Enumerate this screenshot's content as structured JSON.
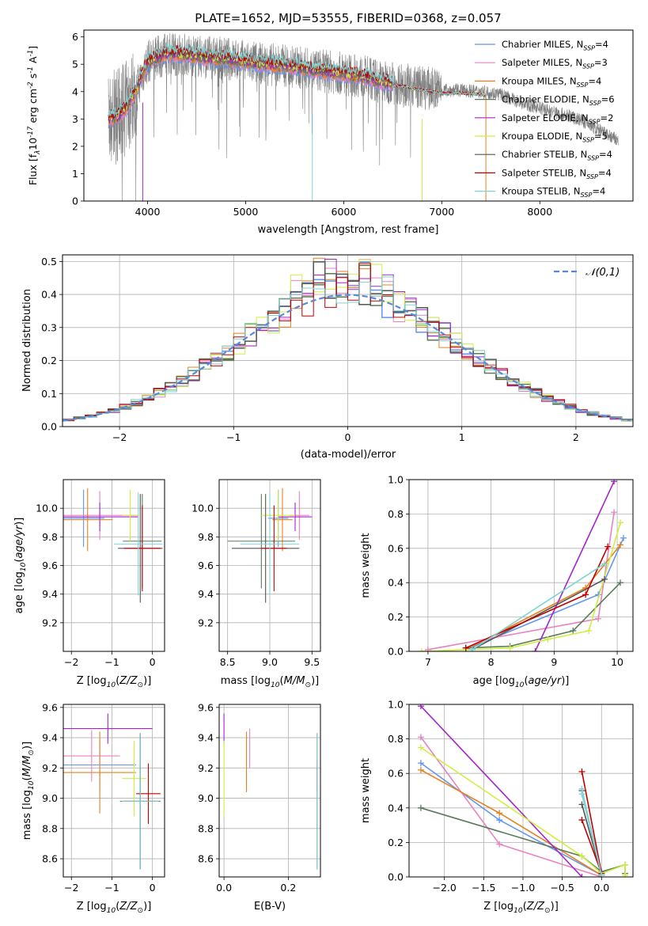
{
  "colors": {
    "c_miles": "#6495ed",
    "s_miles": "#e882c0",
    "k_miles": "#e8801e",
    "c_elodie": "#5a7a5a",
    "s_elodie": "#a526c8",
    "k_elodie": "#cfee44",
    "c_stelib": "#555555",
    "s_stelib": "#c00000",
    "k_stelib": "#7fd4d4",
    "observed": "#808080",
    "gauss": "#5a88d8",
    "grid": "#b0b0b0"
  },
  "legend": {
    "models": [
      "Chabrier MILES, N$_{SSP}$=4",
      "Salpeter MILES, N$_{SSP}$=3",
      "Kroupa MILES, N$_{SSP}$=4",
      "Chabrier ELODIE, N$_{SSP}$=6",
      "Salpeter ELODIE, N$_{SSP}$=2",
      "Kroupa ELODIE, N$_{SSP}$=5",
      "Chabrier STELIB, N$_{SSP}$=4",
      "Salpeter STELIB, N$_{SSP}$=4",
      "Kroupa STELIB, N$_{SSP}$=4"
    ],
    "model_keys": [
      "c_miles",
      "s_miles",
      "k_miles",
      "c_elodie",
      "s_elodie",
      "k_elodie",
      "c_stelib",
      "s_stelib",
      "k_stelib"
    ]
  },
  "chart_data": [
    {
      "panel": "spectrum",
      "type": "line",
      "title": "PLATE=1652, MJD=53555, FIBERID=0368, z=0.057",
      "xlabel": "wavelength [Angstrom, rest frame]",
      "ylabel": "Flux [f$_\\lambda$10$^{-17}$ erg cm$^{-2}$ s$^{-1}$ A$^{-1}$]",
      "xlim": [
        3350,
        8950
      ],
      "ylim": [
        0,
        6.25
      ],
      "xticks": [
        4000,
        5000,
        6000,
        7000,
        8000
      ],
      "yticks": [
        0,
        1,
        2,
        3,
        4,
        5,
        6
      ],
      "grid": false,
      "legend_position": "top-right",
      "continuum": {
        "x": [
          3600,
          3700,
          3800,
          3900,
          4000,
          4200,
          4400,
          4600,
          4800,
          5000,
          5200,
          5400,
          5600,
          5800,
          6000,
          6200,
          6400,
          6600,
          6800,
          7000,
          7200,
          7400,
          7600,
          7800,
          8000,
          8200,
          8400,
          8600,
          8800
        ],
        "y": [
          3.0,
          3.1,
          3.5,
          4.2,
          5.1,
          5.4,
          5.35,
          5.25,
          5.2,
          5.1,
          5.0,
          4.95,
          4.85,
          4.75,
          4.65,
          4.55,
          4.35,
          4.3,
          4.15,
          4.05,
          4.05,
          4.0,
          3.9,
          3.6,
          3.4,
          3.2,
          3.0,
          2.6,
          2.2
        ]
      }
    },
    {
      "panel": "residuals",
      "type": "line",
      "xlabel": "(data-model)/error",
      "ylabel": "Normed distribution",
      "xlim": [
        -2.5,
        2.5
      ],
      "ylim": [
        0,
        0.52
      ],
      "xticks": [
        -2,
        -1,
        0,
        1,
        2
      ],
      "yticks": [
        0.0,
        0.1,
        0.2,
        0.3,
        0.4,
        0.5
      ],
      "grid": true,
      "legend_position": "top-right",
      "series": [
        {
          "name": "$\\mathcal{N}(0,1)$",
          "type": "normal-pdf"
        }
      ],
      "histograms": "one normed histogram per model (bin width 0.1)"
    },
    {
      "panel": "age_vs_Z",
      "type": "scatter",
      "xlabel": "Z [log$_{10}$($Z/Z_\\odot$)]",
      "ylabel": "age  [log$_{10}$($age/yr$)]",
      "xlim": [
        -2.2,
        0.3
      ],
      "ylim": [
        9.0,
        10.2
      ],
      "xticks": [
        -2,
        -1,
        0
      ],
      "yticks": [
        9.2,
        9.4,
        9.6,
        9.8,
        10.0
      ],
      "grid": true,
      "points": [
        {
          "m": "c_miles",
          "x": -1.7,
          "y": 9.93,
          "xe": 0.52,
          "ye": 0.2
        },
        {
          "m": "s_miles",
          "x": -1.3,
          "y": 9.95,
          "xe": 0.95,
          "ye": 0.17
        },
        {
          "m": "k_miles",
          "x": -1.6,
          "y": 9.92,
          "xe": 0.62,
          "ye": 0.22
        },
        {
          "m": "c_elodie",
          "x": -0.25,
          "y": 9.77,
          "xe": 0.48,
          "ye": 0.33
        },
        {
          "m": "s_elodie",
          "x": -1.3,
          "y": 9.94,
          "xe": 0.95,
          "ye": 0.1
        },
        {
          "m": "k_elodie",
          "x": -0.55,
          "y": 9.95,
          "xe": 0.2,
          "ye": 0.18
        },
        {
          "m": "c_stelib",
          "x": -0.3,
          "y": 9.72,
          "xe": 0.55,
          "ye": 0.38
        },
        {
          "m": "s_stelib",
          "x": -0.25,
          "y": 9.72,
          "xe": 0.45,
          "ye": 0.3
        },
        {
          "m": "k_stelib",
          "x": -0.35,
          "y": 9.75,
          "xe": 0.6,
          "ye": 0.36
        }
      ]
    },
    {
      "panel": "age_vs_mass",
      "type": "scatter",
      "xlabel": "mass [log$_{10}$($M/M_\\odot$)]",
      "xlim": [
        8.4,
        9.6
      ],
      "ylim": [
        9.0,
        10.2
      ],
      "xticks": [
        8.5,
        9.0,
        9.5
      ],
      "yticks": [
        9.2,
        9.4,
        9.6,
        9.8,
        10.0
      ],
      "grid": true,
      "points": [
        {
          "m": "c_miles",
          "x": 9.1,
          "y": 9.93,
          "xe": 0.12,
          "ye": 0.2
        },
        {
          "m": "s_miles",
          "x": 9.35,
          "y": 9.95,
          "xe": 0.12,
          "ye": 0.17
        },
        {
          "m": "k_miles",
          "x": 9.15,
          "y": 9.92,
          "xe": 0.12,
          "ye": 0.22
        },
        {
          "m": "c_elodie",
          "x": 8.9,
          "y": 9.77,
          "xe": 0.4,
          "ye": 0.33
        },
        {
          "m": "s_elodie",
          "x": 9.3,
          "y": 9.94,
          "xe": 0.2,
          "ye": 0.1
        },
        {
          "m": "k_elodie",
          "x": 9.1,
          "y": 9.95,
          "xe": 0.2,
          "ye": 0.18
        },
        {
          "m": "c_stelib",
          "x": 8.95,
          "y": 9.72,
          "xe": 0.4,
          "ye": 0.38
        },
        {
          "m": "s_stelib",
          "x": 9.05,
          "y": 9.72,
          "xe": 0.15,
          "ye": 0.3
        },
        {
          "m": "k_stelib",
          "x": 9.0,
          "y": 9.75,
          "xe": 0.35,
          "ye": 0.36
        }
      ]
    },
    {
      "panel": "weight_vs_age",
      "type": "line",
      "xlabel": "age  [log$_{10}$($age/yr$)]",
      "ylabel": "mass weight",
      "xlim": [
        6.7,
        10.25
      ],
      "ylim": [
        0,
        1
      ],
      "xticks": [
        7,
        8,
        9,
        10
      ],
      "yticks": [
        0.0,
        0.2,
        0.4,
        0.6,
        0.8,
        1.0
      ],
      "grid": true,
      "series": [
        {
          "m": "c_miles",
          "x": [
            7.6,
            9.7,
            10.1
          ],
          "y": [
            0.01,
            0.33,
            0.66
          ]
        },
        {
          "m": "s_miles",
          "x": [
            7.0,
            9.7,
            9.95
          ],
          "y": [
            0.01,
            0.19,
            0.81
          ]
        },
        {
          "m": "k_miles",
          "x": [
            7.6,
            9.5,
            10.05
          ],
          "y": [
            0.01,
            0.37,
            0.62
          ]
        },
        {
          "m": "c_elodie",
          "x": [
            7.6,
            8.3,
            9.3,
            10.05
          ],
          "y": [
            0.02,
            0.03,
            0.12,
            0.4
          ]
        },
        {
          "m": "s_elodie",
          "x": [
            8.7,
            9.95
          ],
          "y": [
            0.0,
            0.99
          ]
        },
        {
          "m": "k_elodie",
          "x": [
            6.9,
            8.3,
            8.9,
            9.55,
            10.05
          ],
          "y": [
            0.0,
            0.02,
            0.07,
            0.12,
            0.75
          ]
        },
        {
          "m": "c_stelib",
          "x": [
            7.7,
            9.8
          ],
          "y": [
            0.01,
            0.42
          ]
        },
        {
          "m": "s_stelib",
          "x": [
            7.6,
            9.5,
            9.85
          ],
          "y": [
            0.02,
            0.33,
            0.61
          ]
        },
        {
          "m": "k_stelib",
          "x": [
            7.7,
            9.8
          ],
          "y": [
            0.01,
            0.51
          ]
        }
      ]
    },
    {
      "panel": "mass_vs_Z",
      "type": "scatter",
      "xlabel": "Z [log$_{10}$($Z/Z_\\odot$)]",
      "ylabel": "mass [log$_{10}$($M/M_\\odot$)]",
      "xlim": [
        -2.2,
        0.3
      ],
      "ylim": [
        8.48,
        9.62
      ],
      "xticks": [
        -2,
        -1,
        0
      ],
      "yticks": [
        8.6,
        8.8,
        9.0,
        9.2,
        9.4,
        9.6
      ],
      "grid": true,
      "points": [
        {
          "m": "c_miles",
          "x": -1.3,
          "y": 9.22,
          "xe": 0.9,
          "ye": 0.17
        },
        {
          "m": "s_miles",
          "x": -1.5,
          "y": 9.28,
          "xe": 0.7,
          "ye": 0.17
        },
        {
          "m": "k_miles",
          "x": -1.3,
          "y": 9.17,
          "xe": 0.9,
          "ye": 0.27
        },
        {
          "m": "c_elodie",
          "x": -0.3,
          "y": 8.98,
          "xe": 0.5,
          "ye": 0.45
        },
        {
          "m": "s_elodie",
          "x": -1.1,
          "y": 9.46,
          "xe": 1.1,
          "ye": 0.1
        },
        {
          "m": "k_elodie",
          "x": -0.45,
          "y": 9.13,
          "xe": 0.3,
          "ye": 0.25
        },
        {
          "m": "c_stelib",
          "x": -0.3,
          "y": 8.98,
          "xe": 0.4,
          "ye": 0.45
        },
        {
          "m": "s_stelib",
          "x": -0.1,
          "y": 9.03,
          "xe": 0.3,
          "ye": 0.2
        },
        {
          "m": "k_stelib",
          "x": -0.3,
          "y": 8.98,
          "xe": 0.45,
          "ye": 0.45
        }
      ]
    },
    {
      "panel": "mass_vs_ebv",
      "type": "scatter",
      "xlabel": "E(B-V)",
      "xlim": [
        -0.015,
        0.3
      ],
      "ylim": [
        8.48,
        9.62
      ],
      "xticks": [
        0.0,
        0.2
      ],
      "yticks": [
        8.6,
        8.8,
        9.0,
        9.2,
        9.4,
        9.6
      ],
      "grid": true,
      "points": [
        {
          "m": "c_miles",
          "x": 0.29,
          "y": 9.0,
          "xe": 0,
          "ye": 0.2
        },
        {
          "m": "s_miles",
          "x": 0.08,
          "y": 9.33,
          "xe": 0,
          "ye": 0.13
        },
        {
          "m": "k_miles",
          "x": 0.07,
          "y": 9.24,
          "xe": 0,
          "ye": 0.2
        },
        {
          "m": "c_elodie",
          "x": 0.29,
          "y": 8.98,
          "xe": 0,
          "ye": 0.45
        },
        {
          "m": "s_elodie",
          "x": 0.0,
          "y": 9.46,
          "xe": 0,
          "ye": 0.1
        },
        {
          "m": "k_elodie",
          "x": 0.0,
          "y": 9.13,
          "xe": 0,
          "ye": 0.25
        },
        {
          "m": "c_stelib",
          "x": 0.29,
          "y": 8.98,
          "xe": 0,
          "ye": 0.45
        },
        {
          "m": "s_stelib",
          "x": 0.29,
          "y": 9.15,
          "xe": 0,
          "ye": 0.1
        },
        {
          "m": "k_stelib",
          "x": 0.29,
          "y": 8.98,
          "xe": 0,
          "ye": 0.45
        }
      ]
    },
    {
      "panel": "weight_vs_Z",
      "type": "line",
      "xlabel": "Z [log$_{10}$($Z/Z_\\odot$)]",
      "ylabel": "mass weight",
      "xlim": [
        -2.45,
        0.4
      ],
      "ylim": [
        0,
        1
      ],
      "xticks": [
        -2.0,
        -1.5,
        -1.0,
        -0.5,
        0.0
      ],
      "yticks": [
        0.0,
        0.2,
        0.4,
        0.6,
        0.8,
        1.0
      ],
      "grid": true,
      "series": [
        {
          "m": "c_miles",
          "x": [
            -2.3,
            -1.3,
            0.0
          ],
          "y": [
            0.66,
            0.33,
            0.01
          ]
        },
        {
          "m": "s_miles",
          "x": [
            -2.3,
            -1.3,
            0.0
          ],
          "y": [
            0.81,
            0.19,
            0.0
          ]
        },
        {
          "m": "k_miles",
          "x": [
            -2.3,
            -1.3,
            0.0
          ],
          "y": [
            0.62,
            0.37,
            0.01
          ]
        },
        {
          "m": "c_elodie",
          "x": [
            -2.3,
            -0.25,
            0.0,
            0.3,
            0.3
          ],
          "y": [
            0.4,
            0.12,
            0.03,
            0.07,
            0.02
          ]
        },
        {
          "m": "s_elodie",
          "x": [
            -2.3,
            -0.25
          ],
          "y": [
            0.99,
            0.0
          ]
        },
        {
          "m": "k_elodie",
          "x": [
            -2.3,
            -0.25,
            0.0,
            0.3,
            0.3
          ],
          "y": [
            0.75,
            0.12,
            0.02,
            0.07,
            0.01
          ]
        },
        {
          "m": "c_stelib",
          "x": [
            -0.25,
            0.0,
            -0.25
          ],
          "y": [
            0.42,
            0.01,
            0.5
          ]
        },
        {
          "m": "s_stelib",
          "x": [
            -0.25,
            0.0,
            -0.25
          ],
          "y": [
            0.61,
            0.02,
            0.33
          ]
        },
        {
          "m": "k_stelib",
          "x": [
            -0.25,
            0.0,
            -0.25
          ],
          "y": [
            0.51,
            0.01,
            0.48
          ]
        }
      ]
    }
  ]
}
